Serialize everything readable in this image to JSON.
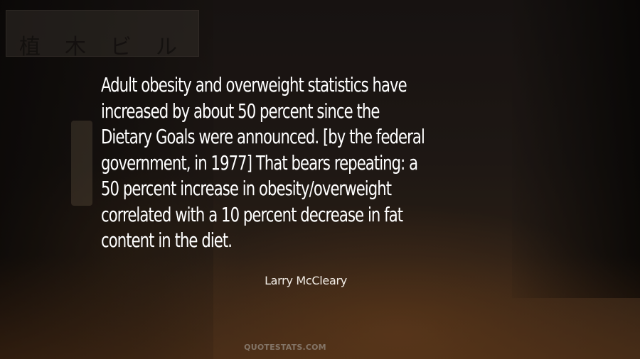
{
  "quote": {
    "text": "Adult obesity and overweight statistics have\nincreased by about 50 percent since the\nDietary Goals were announced. [by the federal\ngovernment, in 1977] That bears repeating: a\n50 percent increase in obesity/overweight\ncorrelated with a 10 percent decrease in fat\ncontent in the diet.",
    "author": "Larry McCleary"
  },
  "background": {
    "sign_characters": [
      "植",
      "木",
      "ビ",
      "ル"
    ]
  },
  "watermark": "QUOTESTATS.COM"
}
